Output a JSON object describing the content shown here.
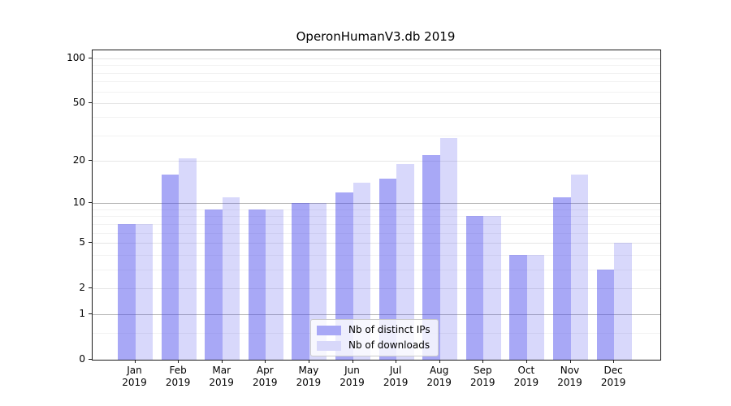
{
  "title": "OperonHumanV3.db 2019",
  "chart_data": {
    "type": "bar",
    "title": "OperonHumanV3.db 2019",
    "categories": [
      "Jan 2019",
      "Feb 2019",
      "Mar 2019",
      "Apr 2019",
      "May 2019",
      "Jun 2019",
      "Jul 2019",
      "Aug 2019",
      "Sep 2019",
      "Oct 2019",
      "Nov 2019",
      "Dec 2019"
    ],
    "months": [
      "Jan",
      "Feb",
      "Mar",
      "Apr",
      "May",
      "Jun",
      "Jul",
      "Aug",
      "Sep",
      "Oct",
      "Nov",
      "Dec"
    ],
    "year_label": "2019",
    "series": [
      {
        "name": "Nb of distinct IPs",
        "values": [
          7,
          16,
          9,
          9,
          10,
          12,
          15,
          22,
          8,
          4,
          11,
          3
        ],
        "fill": "rgba(70,70,235,0.47)",
        "swatch": "#a8a8f6"
      },
      {
        "name": "Nb of downloads",
        "values": [
          7,
          21,
          11,
          9,
          10,
          14,
          19,
          29,
          8,
          4,
          16,
          5
        ],
        "fill": "rgba(70,70,235,0.21)",
        "swatch": "#d8d8fa"
      }
    ],
    "xlabel": "",
    "ylabel": "",
    "y_ticks": [
      0,
      1,
      2,
      5,
      10,
      20,
      50,
      100
    ],
    "y_minor_ticks": [
      0.5,
      3,
      4,
      6,
      7,
      8,
      9,
      30,
      40,
      60,
      70,
      80,
      90
    ],
    "y_scale": "log10(1+x)",
    "ylim": [
      0,
      110
    ],
    "grid": "horizontal",
    "legend_position": "lower center"
  }
}
